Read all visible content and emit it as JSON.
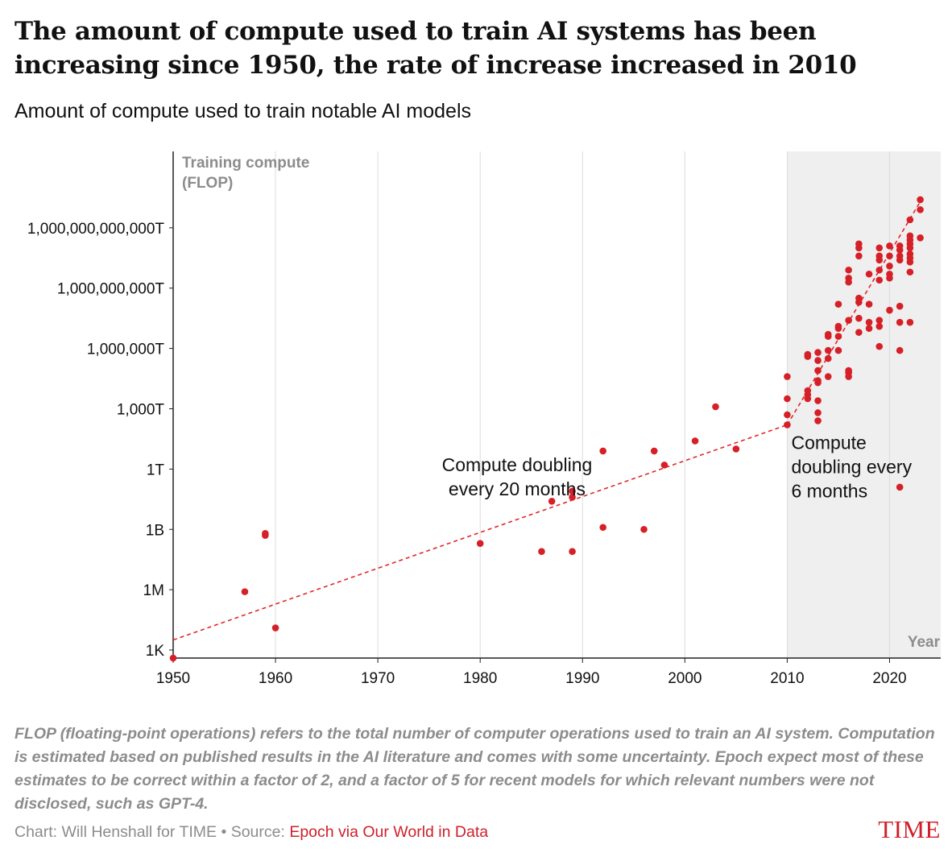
{
  "header": {
    "title": "The amount of compute used to train AI systems has been increasing since 1950, the rate of increase increased in 2010",
    "subtitle": "Amount of compute used to train notable AI models"
  },
  "footer": {
    "note": "FLOP (floating-point operations) refers to the total number of computer operations used to train an AI system. Computation is estimated based on published results in the AI literature and comes with some uncertainty. Epoch expect most of these estimates to be correct within a factor of 2, and a factor of 5 for recent models for which relevant numbers were not disclosed, such as GPT-4.",
    "credit": "Chart: Will Henshall for TIME • Source: ",
    "source": "Epoch via Our World in Data",
    "logo": "TIME"
  },
  "chart_data": {
    "type": "scatter",
    "ylabel_line1": "Training compute",
    "ylabel_line2": "(FLOP)",
    "xlabel": "Year",
    "x_scale": "linear",
    "y_scale": "log10",
    "xlim": [
      1950,
      2025
    ],
    "ylim_log10": [
      2.6,
      27.8
    ],
    "grid": "vertical",
    "colors": {
      "points": "#d62027",
      "trend": "#e0262d",
      "shade": "#efefef"
    },
    "x_ticks": [
      {
        "value": 1950,
        "label": "1950"
      },
      {
        "value": 1960,
        "label": "1960"
      },
      {
        "value": 1970,
        "label": "1970"
      },
      {
        "value": 1980,
        "label": "1980"
      },
      {
        "value": 1990,
        "label": "1990"
      },
      {
        "value": 2000,
        "label": "2000"
      },
      {
        "value": 2010,
        "label": "2010"
      },
      {
        "value": 2020,
        "label": "2020"
      }
    ],
    "y_ticks": [
      {
        "log10": 3,
        "label": "1K"
      },
      {
        "log10": 6,
        "label": "1M"
      },
      {
        "log10": 9,
        "label": "1B"
      },
      {
        "log10": 12,
        "label": "1T"
      },
      {
        "log10": 15,
        "label": "1,000T"
      },
      {
        "log10": 18,
        "label": "1,000,000T"
      },
      {
        "log10": 21,
        "label": "1,000,000,000T"
      },
      {
        "log10": 24,
        "label": "1,000,000,000,000T"
      }
    ],
    "shaded_region": {
      "x_start": 2010,
      "x_end": 2025
    },
    "trend_lines": [
      {
        "from": [
          1950,
          3.5
        ],
        "to": [
          2010,
          14.2
        ]
      },
      {
        "from": [
          2010,
          14.2
        ],
        "to": [
          2023,
          25.3
        ]
      }
    ],
    "annotations": [
      {
        "lines": [
          "Compute doubling",
          "every  20 months"
        ],
        "x": 1983.6,
        "y_log10": 11.9,
        "anchor": "middle"
      },
      {
        "lines": [
          "Compute",
          "doubling every",
          "6 months"
        ],
        "x": 2010.4,
        "y_log10": 13.0,
        "anchor": "start"
      }
    ],
    "points": [
      [
        1950,
        2.6
      ],
      [
        1957,
        5.9
      ],
      [
        1959,
        8.8
      ],
      [
        1959,
        8.7
      ],
      [
        1960,
        4.1
      ],
      [
        1980,
        8.3
      ],
      [
        1986,
        7.9
      ],
      [
        1987,
        10.4
      ],
      [
        1989,
        7.9
      ],
      [
        1989,
        10.6
      ],
      [
        1989,
        10.9
      ],
      [
        1992,
        9.1
      ],
      [
        1992,
        12.9
      ],
      [
        1996,
        9.0
      ],
      [
        1997,
        12.9
      ],
      [
        1998,
        12.2
      ],
      [
        2001,
        13.4
      ],
      [
        2003,
        15.1
      ],
      [
        2005,
        13.0
      ],
      [
        2010,
        14.2
      ],
      [
        2010,
        14.7
      ],
      [
        2010,
        15.5
      ],
      [
        2010,
        16.6
      ],
      [
        2012,
        15.5
      ],
      [
        2012,
        15.7
      ],
      [
        2012,
        15.9
      ],
      [
        2012,
        17.6
      ],
      [
        2012,
        17.7
      ],
      [
        2013,
        14.4
      ],
      [
        2013,
        14.8
      ],
      [
        2013,
        15.4
      ],
      [
        2013,
        16.3
      ],
      [
        2013,
        16.4
      ],
      [
        2013,
        16.9
      ],
      [
        2013,
        17.4
      ],
      [
        2013,
        17.8
      ],
      [
        2014,
        16.6
      ],
      [
        2014,
        17.5
      ],
      [
        2014,
        17.9
      ],
      [
        2014,
        18.6
      ],
      [
        2014,
        18.7
      ],
      [
        2015,
        17.9
      ],
      [
        2015,
        18.6
      ],
      [
        2015,
        19.0
      ],
      [
        2015,
        19.1
      ],
      [
        2015,
        20.2
      ],
      [
        2016,
        16.6
      ],
      [
        2016,
        16.8
      ],
      [
        2016,
        16.9
      ],
      [
        2016,
        19.4
      ],
      [
        2016,
        21.3
      ],
      [
        2016,
        21.5
      ],
      [
        2016,
        21.9
      ],
      [
        2017,
        18.8
      ],
      [
        2017,
        19.5
      ],
      [
        2017,
        20.3
      ],
      [
        2017,
        20.5
      ],
      [
        2017,
        22.6
      ],
      [
        2017,
        23.0
      ],
      [
        2017,
        23.2
      ],
      [
        2018,
        19.0
      ],
      [
        2018,
        19.3
      ],
      [
        2018,
        20.2
      ],
      [
        2018,
        21.7
      ],
      [
        2019,
        18.1
      ],
      [
        2019,
        19.1
      ],
      [
        2019,
        19.4
      ],
      [
        2019,
        21.4
      ],
      [
        2019,
        21.9
      ],
      [
        2019,
        22.4
      ],
      [
        2019,
        22.6
      ],
      [
        2019,
        23.0
      ],
      [
        2020,
        19.9
      ],
      [
        2020,
        21.5
      ],
      [
        2020,
        21.7
      ],
      [
        2020,
        22.1
      ],
      [
        2020,
        22.6
      ],
      [
        2020,
        23.1
      ],
      [
        2021,
        17.9
      ],
      [
        2021,
        19.3
      ],
      [
        2021,
        20.1
      ],
      [
        2021,
        22.4
      ],
      [
        2021,
        22.6
      ],
      [
        2021,
        22.9
      ],
      [
        2021,
        23.1
      ],
      [
        2021,
        11.1
      ],
      [
        2022,
        19.3
      ],
      [
        2022,
        21.8
      ],
      [
        2022,
        22.3
      ],
      [
        2022,
        22.5
      ],
      [
        2022,
        22.7
      ],
      [
        2022,
        23.0
      ],
      [
        2022,
        23.2
      ],
      [
        2022,
        23.4
      ],
      [
        2022,
        23.6
      ],
      [
        2022,
        24.4
      ],
      [
        2023,
        24.9
      ],
      [
        2023,
        25.4
      ],
      [
        2023,
        23.5
      ]
    ]
  }
}
